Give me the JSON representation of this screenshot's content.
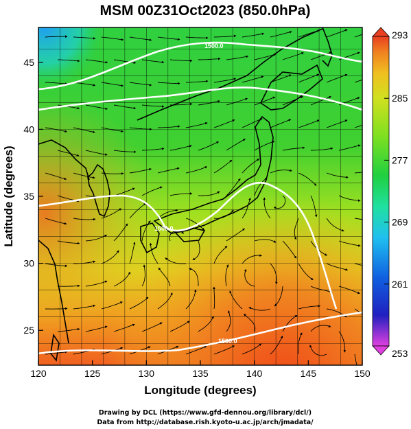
{
  "title": "MSM 00Z31Oct2023 (850.0hPa)",
  "xaxis": {
    "label": "Longitude (degrees)",
    "range": [
      120,
      150
    ],
    "ticks": [
      "120",
      "125",
      "130",
      "135",
      "140",
      "145",
      "150"
    ]
  },
  "yaxis": {
    "label": "Latitude  (degrees)",
    "range": [
      22.4,
      47.6
    ],
    "ticks": [
      "25",
      "30",
      "35",
      "40",
      "45"
    ]
  },
  "colorbar": {
    "min": 253,
    "max": 293,
    "ticks": [
      "293",
      "285",
      "277",
      "269",
      "261",
      "253"
    ],
    "colors": [
      "#e040e0",
      "#2020c0",
      "#1060e0",
      "#20c0f0",
      "#20e0a0",
      "#20d040",
      "#80e020",
      "#d0e020",
      "#f0c020",
      "#f08020",
      "#e84020"
    ]
  },
  "contour_labels": [
    "1500.0",
    "1500.0",
    "1500.0"
  ],
  "credits": {
    "line1": "Drawing by DCL (https://www.gfd-dennou.org/library/dcl/)",
    "line2": "Data from http://database.rish.kyoto-u.ac.jp/arch/jmadata/"
  },
  "colors": {
    "background": "#ffffff",
    "streamline": "#000000",
    "contour": "#ffffff",
    "coastline": "#000000"
  }
}
